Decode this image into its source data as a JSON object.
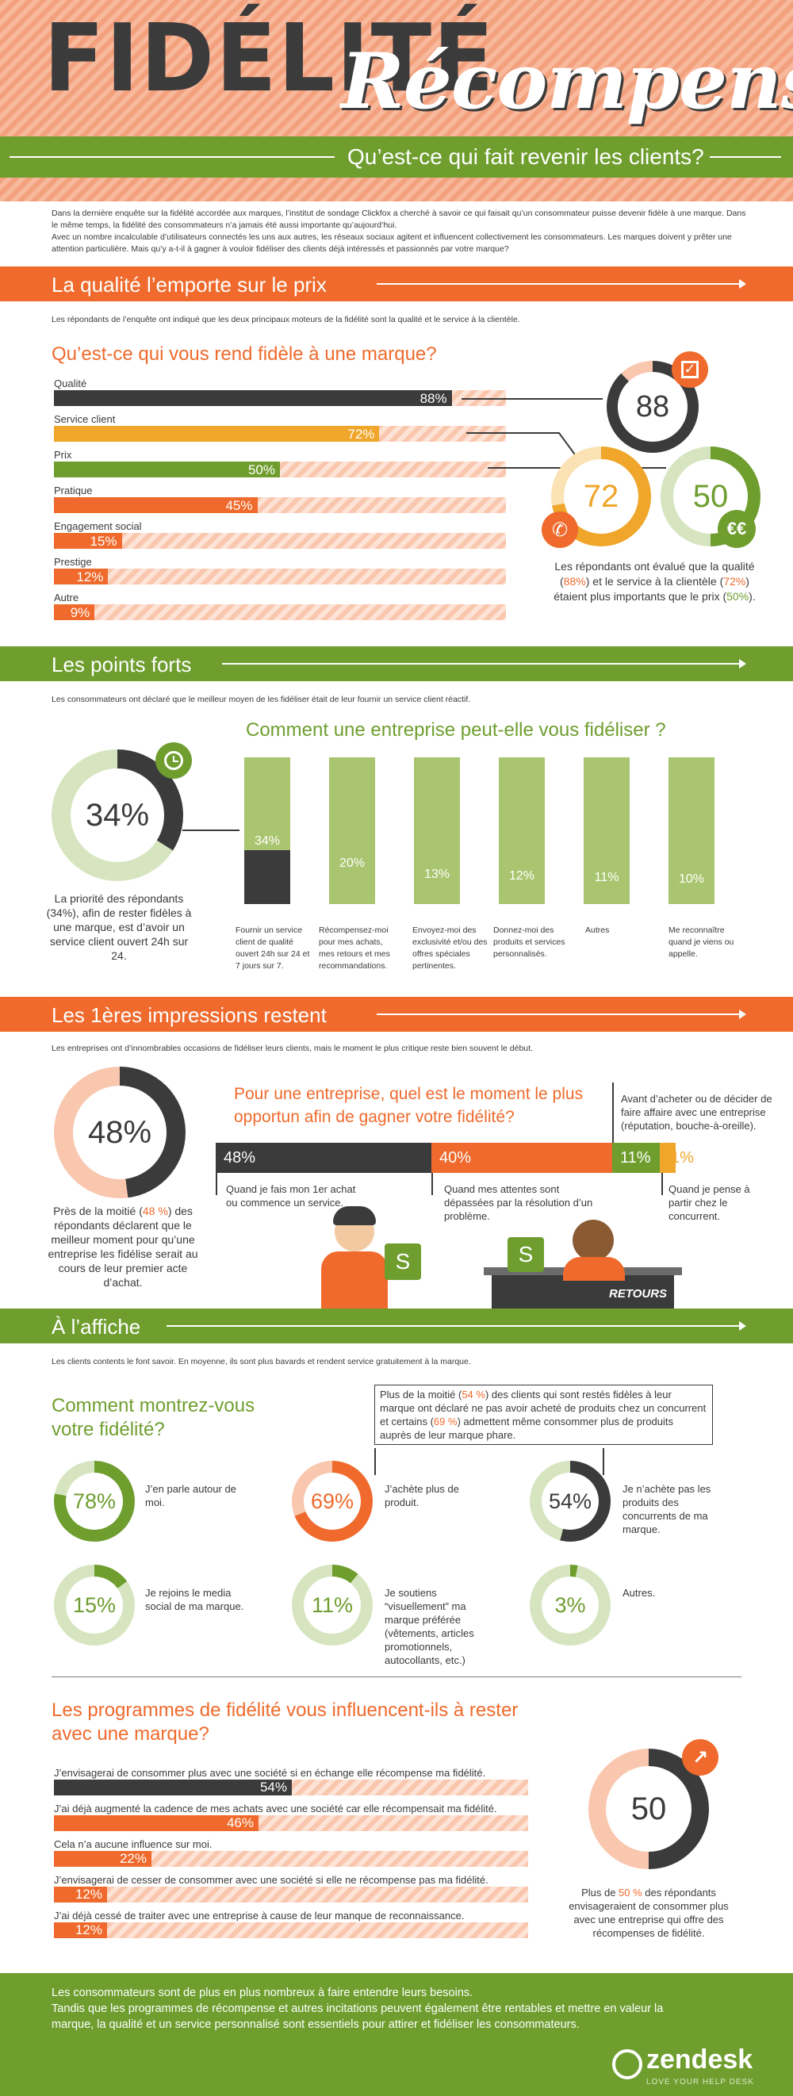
{
  "header": {
    "title_main": "FIDÉLITÉ",
    "title_script": "Récompensée",
    "subtitle": "Qu’est-ce qui fait revenir les clients?"
  },
  "intro": [
    "Dans la dernière enquête sur la fidélité accordée aux marques, l’institut de sondage Clickfox a cherché à savoir ce qui faisait qu’un consommateur puisse devenir fidèle à une marque. Dans le même temps, la fidélité des consommateurs n’a jamais été aussi importante qu’aujourd’hui.",
    "Avec un nombre incalculable d’utilisateurs connectés les uns aux autres, les réseaux sociaux agitent et influencent collectivement les consommateurs. Les marques doivent y prêter une attention particulière. Mais qu’y a-t-il à gagner à vouloir fidéliser des clients déjà intéressés et passionnés par votre marque?"
  ],
  "section1": {
    "title": "La qualité l’emporte sur le prix",
    "lead": "Les répondants de l’enquête ont indiqué que les deux principaux moteurs de la fidélité sont la qualité et le service à la clientèle.",
    "question": "Qu’est-ce qui vous rend fidèle à une marque?",
    "bars": [
      {
        "label": "Qualité",
        "value": 88,
        "display": "88%",
        "color": "#3c3b3b"
      },
      {
        "label": "Service client",
        "value": 72,
        "display": "72%",
        "color": "#efa62a"
      },
      {
        "label": "Prix",
        "value": 50,
        "display": "50%",
        "color": "#6f9e2f"
      },
      {
        "label": "Pratique",
        "value": 45,
        "display": "45%",
        "color": "#ef6a2c"
      },
      {
        "label": "Engagement social",
        "value": 15,
        "display": "15%",
        "color": "#ef6a2c"
      },
      {
        "label": "Prestige",
        "value": 12,
        "display": "12%",
        "color": "#ef6a2c"
      },
      {
        "label": "Autre",
        "value": 9,
        "display": "9%",
        "color": "#ef6a2c"
      }
    ],
    "rings": {
      "quality": "88",
      "service": "72",
      "price": "50"
    },
    "note_pre": "Les répondants ont évalué que la qualité (",
    "note_q": "88%",
    "note_mid1": ") et le service à la clientèle (",
    "note_s": "72%",
    "note_mid2": ") étaient plus importants que le prix (",
    "note_p": "50%",
    "note_end": ").",
    "icon_currency": "€€"
  },
  "section2": {
    "title": "Les points forts",
    "lead": "Les consommateurs ont déclaré que le meilleur moyen de les fidéliser était de leur fournir un service client réactif.",
    "question": "Comment une entreprise peut-elle vous fidéliser ?",
    "big_pct": "34%",
    "big_pct_value": 34,
    "caption": "La priorité des répondants (34%), afin de rester fidèles à une marque, est d’avoir un service client ouvert 24h sur 24.",
    "columns": [
      {
        "value": 34,
        "display": "34%",
        "caption": "Fournir un service client de qualité ouvert 24h sur 24 et 7 jours sur 7."
      },
      {
        "value": 20,
        "display": "20%",
        "caption": "Récompensez-moi pour mes achats, mes retours et mes recommandations."
      },
      {
        "value": 13,
        "display": "13%",
        "caption": "Envoyez-moi des exclusivité et/ou des offres spéciales pertinentes."
      },
      {
        "value": 12,
        "display": "12%",
        "caption": "Donnez-moi des produits et services personnalisés."
      },
      {
        "value": 11,
        "display": "11%",
        "caption": "Autres"
      },
      {
        "value": 10,
        "display": "10%",
        "caption": "Me reconnaître quand je viens ou appelle."
      }
    ]
  },
  "section3": {
    "title": "Les 1ères impressions restent",
    "lead": "Les entreprises ont d’innombrables occasions de fidéliser leurs clients, mais le moment le plus critique reste bien souvent le début.",
    "question": "Pour une entreprise, quel est le moment le plus opportun afin de gagner votre fidélité?",
    "big_pct": "48%",
    "big_pct_value": 48,
    "caption_pre": "Près de la moitié (",
    "caption_pct": "48 %",
    "caption_end": ") des répondants déclarent que le meilleur moment pour qu’une entreprise les fidélise serait au cours de leur premier acte d’achat.",
    "segments": [
      {
        "value": 48,
        "display": "48%",
        "color": "#3c3b3b",
        "caption": "Quand je fais mon 1er achat ou commence un service."
      },
      {
        "value": 40,
        "display": "40%",
        "color": "#ef6a2c",
        "caption": "Quand mes attentes sont dépassées par la résolution d’un problème."
      },
      {
        "value": 11,
        "display": "11%",
        "color": "#6f9e2f",
        "caption": "Avant d’acheter ou de décider de faire affaire avec une entreprise (réputation, bouche-à-oreille)."
      },
      {
        "value": 1,
        "display": "1%",
        "color": "#efa62a",
        "caption": "Quand je pense à partir chez le concurrent."
      }
    ],
    "returns_label": "RETOURS"
  },
  "section4": {
    "title": "À l’affiche",
    "lead": "Les clients contents le font savoir. En moyenne, ils sont plus bavards et rendent service gratuitement à la marque.",
    "question": "Comment montrez-vous votre fidélité?",
    "callout_a": "Plus de la moitié (",
    "callout_p1": "54 %",
    "callout_b": ") des clients qui sont restés fidèles à leur marque ont déclaré ne pas avoir acheté de produits chez un concurrent et certains (",
    "callout_p2": "69 %",
    "callout_c": ") admettent même consommer plus de produits auprès de leur marque phare.",
    "donuts": [
      {
        "value": 78,
        "display": "78%",
        "color": "#6f9e2f",
        "text": "J’en parle autour de moi."
      },
      {
        "value": 69,
        "display": "69%",
        "color": "#ef6a2c",
        "text": "J’achète plus de produit."
      },
      {
        "value": 54,
        "display": "54%",
        "color": "#3c3b3b",
        "text": "Je n’achète pas les produits des concurrents de ma marque."
      },
      {
        "value": 15,
        "display": "15%",
        "color": "#6f9e2f",
        "text": "Je rejoins le media social de ma marque."
      },
      {
        "value": 11,
        "display": "11%",
        "color": "#6f9e2f",
        "text": "Je soutiens “visuellement” ma marque préférée (vêtements, articles promotionnels, autocollants, etc.)"
      },
      {
        "value": 3,
        "display": "3%",
        "color": "#6f9e2f",
        "text": "Autres."
      }
    ]
  },
  "section5": {
    "question": "Les programmes de fidélité vous influencent-ils à rester avec une marque?",
    "bars": [
      {
        "label": "J’envisagerai de consommer plus avec une société si en échange elle récompense ma fidélité.",
        "value": 54,
        "display": "54%",
        "color": "#3c3b3b"
      },
      {
        "label": "J’ai déjà augmenté la cadence de mes achats avec une société car elle récompensait ma fidélité.",
        "value": 46,
        "display": "46%",
        "color": "#ef6a2c"
      },
      {
        "label": "Cela n’a aucune influence sur moi.",
        "value": 22,
        "display": "22%",
        "color": "#ef6a2c"
      },
      {
        "label": "J’envisagerai de cesser de consommer avec une société si elle ne récompense pas ma fidélité.",
        "value": 12,
        "display": "12%",
        "color": "#ef6a2c"
      },
      {
        "label": "J’ai déjà cessé de traiter avec une entreprise à cause de leur manque de reconnaissance.",
        "value": 12,
        "display": "12%",
        "color": "#ef6a2c"
      }
    ],
    "big_value": "50",
    "note_pre": "Plus de ",
    "note_pct": "50 %",
    "note_end": " des répondants envisageraient de consommer plus avec une entreprise qui offre des récompenses de fidélité."
  },
  "footer": {
    "line1": "Les consommateurs sont de plus en plus nombreux à faire entendre leurs besoins.",
    "line2": "Tandis que les programmes de récompense et autres incitations peuvent également être rentables et mettre en valeur la marque, la qualité et un service personnalisé sont essentiels pour attirer et fidéliser les consommateurs.",
    "logo": "zendesk",
    "tagline": "LOVE YOUR HELP DESK"
  },
  "colors": {
    "orange": "#ef6a2c",
    "green": "#6f9e2f",
    "dark": "#3c3b3b",
    "yellow": "#efa62a",
    "light_green": "#a9c56f"
  }
}
